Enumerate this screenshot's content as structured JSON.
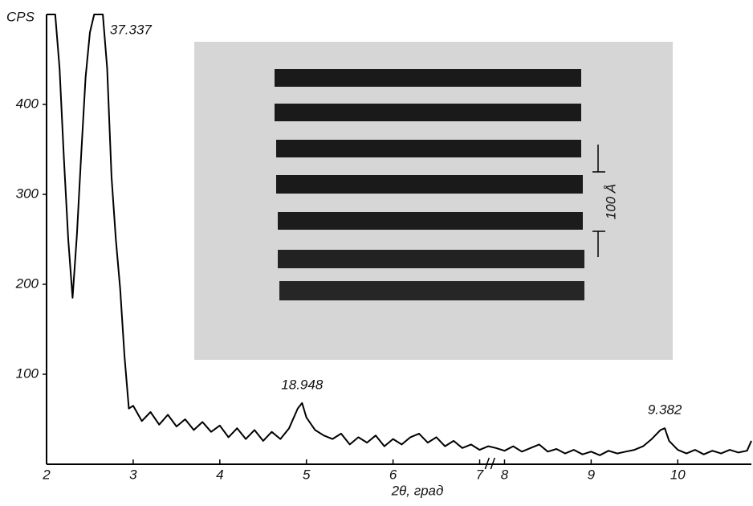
{
  "chart_data": {
    "type": "line",
    "y_label": "CPS",
    "x_label": "2θ, град",
    "x": [
      2.0,
      2.05,
      2.1,
      2.15,
      2.2,
      2.25,
      2.3,
      2.35,
      2.4,
      2.45,
      2.5,
      2.55,
      2.6,
      2.65,
      2.7,
      2.75,
      2.8,
      2.85,
      2.9,
      2.95,
      3.0,
      3.1,
      3.2,
      3.3,
      3.4,
      3.5,
      3.6,
      3.7,
      3.8,
      3.9,
      4.0,
      4.1,
      4.2,
      4.3,
      4.4,
      4.5,
      4.6,
      4.7,
      4.8,
      4.9,
      4.95,
      5.0,
      5.1,
      5.2,
      5.3,
      5.4,
      5.5,
      5.6,
      5.7,
      5.8,
      5.9,
      6.0,
      6.1,
      6.2,
      6.3,
      6.4,
      6.5,
      6.6,
      6.7,
      6.8,
      6.9,
      7.0,
      7.1,
      7.9,
      8.0,
      8.1,
      8.2,
      8.3,
      8.4,
      8.5,
      8.6,
      8.7,
      8.8,
      8.9,
      9.0,
      9.1,
      9.2,
      9.3,
      9.4,
      9.5,
      9.6,
      9.7,
      9.8,
      9.85,
      9.9,
      10.0,
      10.1,
      10.2,
      10.3,
      10.4,
      10.5,
      10.6,
      10.7,
      10.8,
      10.85
    ],
    "values": [
      500,
      500,
      500,
      440,
      340,
      250,
      185,
      255,
      345,
      430,
      480,
      500,
      500,
      500,
      440,
      320,
      250,
      195,
      120,
      62,
      65,
      48,
      58,
      44,
      55,
      42,
      50,
      38,
      47,
      36,
      43,
      30,
      40,
      28,
      38,
      26,
      36,
      28,
      40,
      62,
      68,
      52,
      38,
      32,
      28,
      34,
      22,
      30,
      24,
      32,
      20,
      28,
      22,
      30,
      34,
      24,
      30,
      20,
      26,
      18,
      22,
      16,
      20,
      18,
      15,
      20,
      14,
      18,
      22,
      14,
      17,
      12,
      16,
      11,
      14,
      10,
      15,
      12,
      14,
      16,
      20,
      28,
      38,
      40,
      26,
      16,
      12,
      16,
      11,
      15,
      12,
      16,
      13,
      15,
      26
    ],
    "color": "#000000",
    "xlim": [
      2,
      10.85
    ],
    "x_break": [
      7.1,
      7.85
    ],
    "xticks": [
      2,
      3,
      4,
      5,
      6,
      7,
      8,
      9,
      10
    ],
    "ylim": [
      0,
      500
    ],
    "yticks": [
      100,
      200,
      300,
      400
    ],
    "annotations": [
      {
        "text": "37.337",
        "x": 2.62,
        "y": 500
      },
      {
        "text": "18.948",
        "x": 4.95,
        "y": 68
      },
      {
        "text": "9.382",
        "x": 9.85,
        "y": 40
      }
    ],
    "inset_scale_label": "100 Å"
  }
}
